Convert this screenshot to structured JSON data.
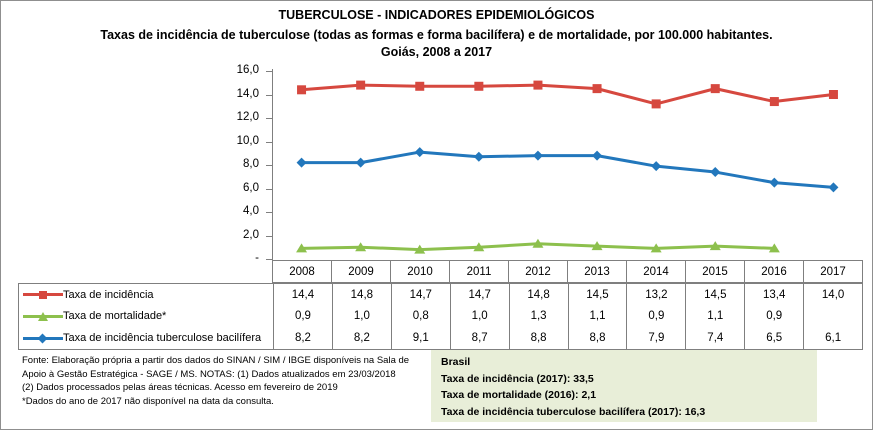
{
  "header": {
    "title": "TUBERCULOSE - INDICADORES EPIDEMIOLÓGICOS",
    "subtitle": "Taxas de incidência de tuberculose (todas as formas e forma bacilífera) e de mortalidade,  por 100.000 habitantes. Goiás, 2008 a 2017"
  },
  "chart_data": {
    "type": "line",
    "title": "Taxas de incidência de tuberculose (todas as formas e forma bacilífera) e de mortalidade, por 100.000 habitantes. Goiás, 2008 a 2017",
    "categories": [
      "2008",
      "2009",
      "2010",
      "2011",
      "2012",
      "2013",
      "2014",
      "2015",
      "2016",
      "2017"
    ],
    "ylim": [
      0,
      16
    ],
    "y_tick_labels": [
      "16,0",
      "14,0",
      "12,0",
      "10,0",
      "8,0",
      "6,0",
      "4,0",
      "2,0",
      "-"
    ],
    "grid": false,
    "legend_position": "table-left",
    "series": [
      {
        "name": "Taxa de incidência",
        "marker": "square",
        "color": "#D6483F",
        "values": [
          14.4,
          14.8,
          14.7,
          14.7,
          14.8,
          14.5,
          13.2,
          14.5,
          13.4,
          14.0
        ]
      },
      {
        "name": "Taxa de mortalidade*",
        "marker": "triangle",
        "color": "#8DC04D",
        "values": [
          0.9,
          1.0,
          0.8,
          1.0,
          1.3,
          1.1,
          0.9,
          1.1,
          0.9,
          null
        ]
      },
      {
        "name": "Taxa de incidência tuberculose bacilífera",
        "marker": "diamond",
        "color": "#2277BC",
        "values": [
          8.2,
          8.2,
          9.1,
          8.7,
          8.8,
          8.8,
          7.9,
          7.4,
          6.5,
          6.1
        ]
      }
    ]
  },
  "table": {
    "display_values": [
      [
        "14,4",
        "14,8",
        "14,7",
        "14,7",
        "14,8",
        "14,5",
        "13,2",
        "14,5",
        "13,4",
        "14,0"
      ],
      [
        "0,9",
        "1,0",
        "0,8",
        "1,0",
        "1,3",
        "1,1",
        "0,9",
        "1,1",
        "0,9",
        ""
      ],
      [
        "8,2",
        "8,2",
        "9,1",
        "8,7",
        "8,8",
        "8,8",
        "7,9",
        "7,4",
        "6,5",
        "6,1"
      ]
    ]
  },
  "footer": {
    "source_lines": [
      "Fonte: Elaboração própria a partir dos dados do SINAN / SIM / IBGE  disponíveis na Sala de",
      "Apoio  à Gestão Estratégica - SAGE / MS. NOTAS: (1) Dados atualizados em 23/03/2018",
      "(2) Dados processados pelas áreas técnicas. Acesso em fevereiro de 2019",
      "*Dados do ano de 2017 não disponível na data da consulta."
    ],
    "brasil_box": {
      "background": "#E8EED8",
      "title": "Brasil",
      "lines": [
        "Taxa de incidência  (2017): 33,5",
        "Taxa de mortalidade (2016): 2,1",
        "Taxa de incidência  tuberculose bacilífera  (2017): 16,3"
      ]
    }
  }
}
